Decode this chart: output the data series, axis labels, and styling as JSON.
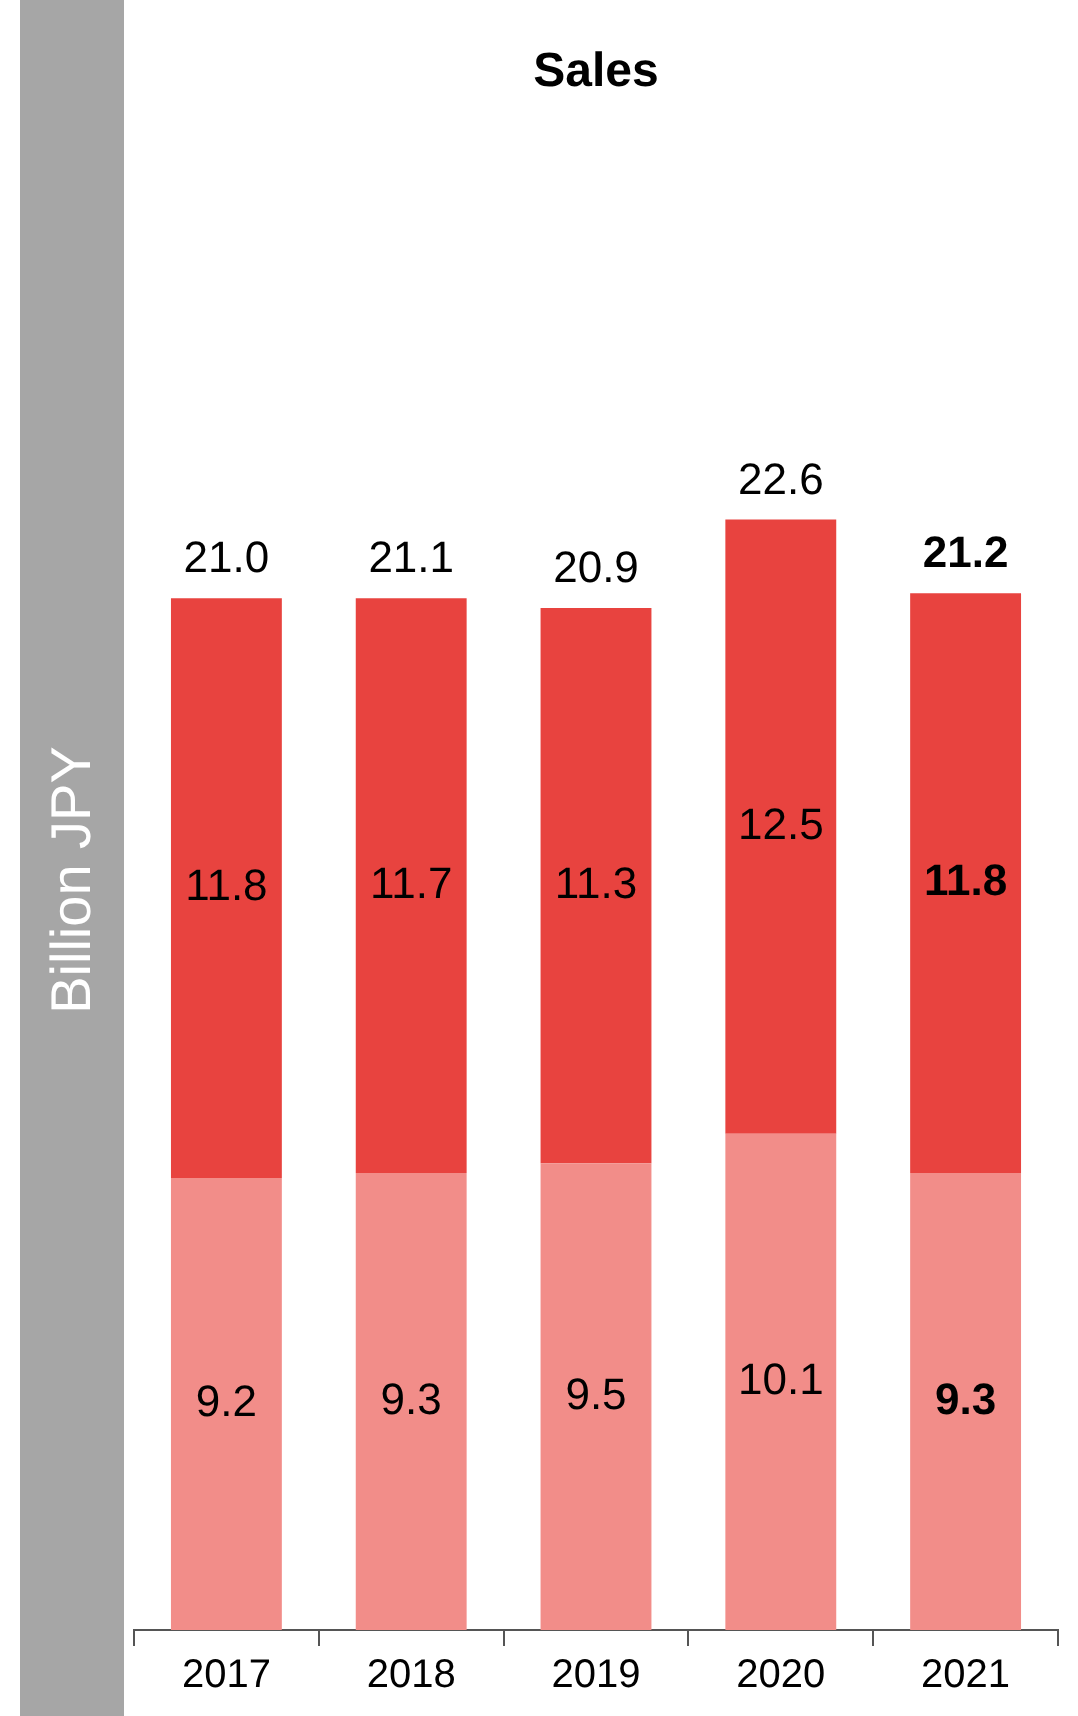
{
  "chart_data": {
    "type": "bar",
    "title": "Sales",
    "ylabel": "Billion JPY",
    "categories": [
      "2017",
      "2018",
      "2019",
      "2020",
      "2021"
    ],
    "stacked": true,
    "series": [
      {
        "color": "#f28d89",
        "values": [
          9.2,
          9.3,
          9.5,
          10.1,
          9.3
        ]
      },
      {
        "color": "#e8433f",
        "values": [
          11.8,
          11.7,
          11.3,
          12.5,
          11.8
        ]
      }
    ],
    "data_labels": true,
    "totals": [
      "21.0",
      "21.1",
      "20.9",
      "22.6",
      "21.2"
    ],
    "grid": false,
    "legend": false,
    "tick_labels": "x"
  }
}
